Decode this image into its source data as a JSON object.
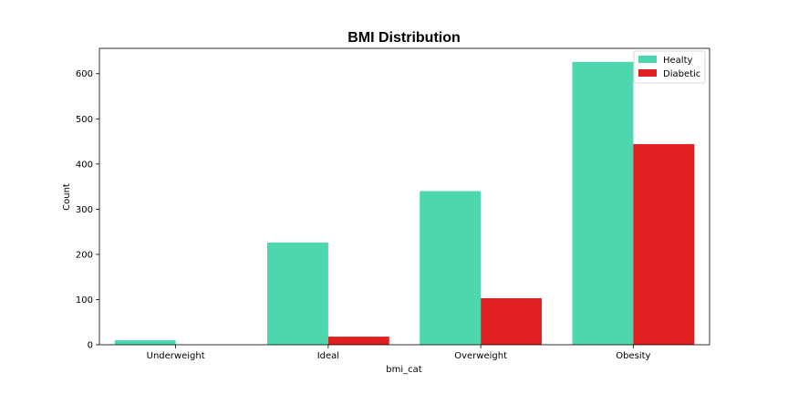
{
  "chart_data": {
    "type": "bar",
    "title": "BMI Distribution",
    "xlabel": "bmi_cat",
    "ylabel": "Count",
    "categories": [
      "Underweight",
      "Ideal",
      "Overweight",
      "Obesity"
    ],
    "series": [
      {
        "name": "Healty",
        "color": "#4cd7af",
        "values": [
          10,
          226,
          340,
          626
        ]
      },
      {
        "name": "Diabetic",
        "color": "#e02020",
        "values": [
          0,
          18,
          103,
          444
        ]
      }
    ],
    "ylim": [
      0,
      656
    ],
    "yticks": [
      0,
      100,
      200,
      300,
      400,
      500,
      600
    ],
    "grid": false,
    "legend_position": "top-right"
  }
}
